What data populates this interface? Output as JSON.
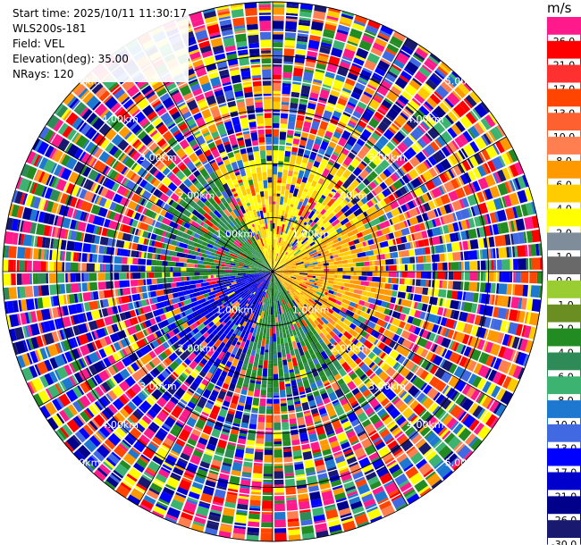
{
  "info": {
    "start_time": "Start time: 2025/10/11 11:30:17",
    "device": "WLS200s-181",
    "field": "Field: VEL",
    "elevation": "Elevation(deg): 35.00",
    "nrays": "NRays: 120"
  },
  "chart_data": {
    "type": "heatmap",
    "projection": "polar-ppi",
    "field": "VEL",
    "units": "m/s",
    "n_rays": 120,
    "elevation_deg": 35.0,
    "max_range_km": 5.0,
    "range_rings": [
      {
        "km": 1,
        "label": "1.00km"
      },
      {
        "km": 2,
        "label": "2.00km"
      },
      {
        "km": 3,
        "label": "3.00km"
      },
      {
        "km": 4,
        "label": "4.00km"
      },
      {
        "km": 5,
        "label": "5.00km"
      }
    ],
    "colorbar": {
      "unit_label": "m/s",
      "bins": [
        {
          "label": "26.0",
          "color": "#ff1a8c"
        },
        {
          "label": "21.0",
          "color": "#ff0000"
        },
        {
          "label": "17.0",
          "color": "#ff3030"
        },
        {
          "label": "13.0",
          "color": "#ff4500"
        },
        {
          "label": "10.0",
          "color": "#ff6030"
        },
        {
          "label": "8.0",
          "color": "#ff7f50"
        },
        {
          "label": "6.0",
          "color": "#ff9900"
        },
        {
          "label": "4.0",
          "color": "#ffcc00"
        },
        {
          "label": "2.0",
          "color": "#ffff00"
        },
        {
          "label": "1.0",
          "color": "#7f8c9a"
        },
        {
          "label": "0.0",
          "color": "#696969"
        },
        {
          "label": "-1.0",
          "color": "#9acd32"
        },
        {
          "label": "-2.0",
          "color": "#6b8e23"
        },
        {
          "label": "-4.0",
          "color": "#228b22"
        },
        {
          "label": "-6.0",
          "color": "#2e8b57"
        },
        {
          "label": "-8.0",
          "color": "#3cb371"
        },
        {
          "label": "-10.0",
          "color": "#1e78d0"
        },
        {
          "label": "-13.0",
          "color": "#4169e1"
        },
        {
          "label": "-17.0",
          "color": "#0000ff"
        },
        {
          "label": "-21.0",
          "color": "#0000cd"
        },
        {
          "label": "-26.0",
          "color": "#00008b"
        },
        {
          "label": "-30.0",
          "color": "#191970"
        }
      ]
    },
    "pattern": {
      "near_range_km": 2.2,
      "features": [
        {
          "azimuth_deg": 0,
          "velocity": 4.0
        },
        {
          "azimuth_deg": 120,
          "velocity": 6.0
        },
        {
          "azimuth_deg": 165,
          "velocity": -4.0
        },
        {
          "azimuth_deg": 230,
          "velocity": -17.0
        },
        {
          "azimuth_deg": 300,
          "velocity": -4.0
        }
      ]
    }
  }
}
